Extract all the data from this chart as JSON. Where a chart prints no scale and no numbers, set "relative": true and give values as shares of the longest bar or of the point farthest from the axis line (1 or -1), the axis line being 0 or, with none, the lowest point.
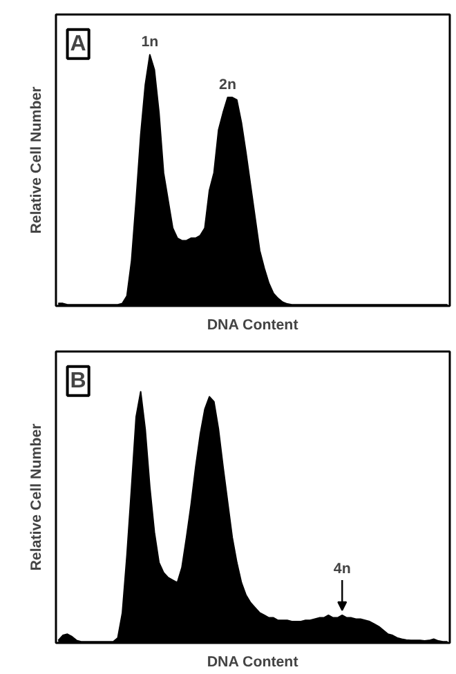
{
  "chart_data": [
    {
      "type": "area",
      "relative": true,
      "xlabel": "DNA Content",
      "ylabel": "Relative Cell Number",
      "tick_labels": false,
      "categories": [
        null,
        null,
        null,
        null,
        null,
        null,
        null,
        null,
        null,
        null,
        null,
        null,
        null,
        null,
        null,
        null,
        null,
        null,
        null,
        null,
        null,
        null,
        null,
        null,
        null,
        null,
        null,
        null,
        null,
        null,
        null,
        null,
        null,
        null,
        null,
        null,
        null,
        null,
        null,
        null,
        null,
        null,
        null,
        null,
        null,
        null,
        null,
        null,
        null,
        null,
        null,
        null,
        null,
        null,
        null,
        null,
        null,
        null,
        null,
        null,
        null,
        null,
        null,
        null,
        null,
        null,
        null,
        null,
        null,
        null,
        null,
        null,
        null,
        null,
        null,
        null,
        null,
        null,
        null,
        null,
        null,
        null,
        null,
        null,
        null,
        null
      ],
      "series": [
        {
          "color": "#000000",
          "values": [
            0.01,
            0.01,
            0.005,
            0.005,
            0.005,
            0.005,
            0.005,
            0.005,
            0.005,
            0.005,
            0.005,
            0.005,
            0.005,
            0.005,
            0.01,
            0.04,
            0.18,
            0.42,
            0.68,
            0.88,
            1.0,
            0.94,
            0.77,
            0.53,
            0.42,
            0.31,
            0.27,
            0.26,
            0.26,
            0.27,
            0.27,
            0.28,
            0.31,
            0.46,
            0.53,
            0.7,
            0.77,
            0.83,
            0.83,
            0.82,
            0.73,
            0.61,
            0.48,
            0.35,
            0.22,
            0.15,
            0.09,
            0.05,
            0.03,
            0.015,
            0.008,
            0.005,
            0.005,
            0.005,
            0.005,
            0.005,
            0.005,
            0.005,
            0.005,
            0.005,
            0.005,
            0.005,
            0.005,
            0.005,
            0.005,
            0.005,
            0.005,
            0.005,
            0.005,
            0.005,
            0.005,
            0.005,
            0.005,
            0.005,
            0.005,
            0.005,
            0.005,
            0.005,
            0.005,
            0.005,
            0.005,
            0.005,
            0.005,
            0.005,
            0.005,
            0.005
          ]
        }
      ],
      "annotations": [
        "A",
        "1n",
        "2n"
      ]
    },
    {
      "type": "area",
      "relative": true,
      "xlabel": "DNA Content",
      "ylabel": "Relative Cell Number",
      "tick_labels": false,
      "categories": [
        null,
        null,
        null,
        null,
        null,
        null,
        null,
        null,
        null,
        null,
        null,
        null,
        null,
        null,
        null,
        null,
        null,
        null,
        null,
        null,
        null,
        null,
        null,
        null,
        null,
        null,
        null,
        null,
        null,
        null,
        null,
        null,
        null,
        null,
        null,
        null,
        null,
        null,
        null,
        null,
        null,
        null,
        null,
        null,
        null,
        null,
        null,
        null,
        null,
        null,
        null,
        null,
        null,
        null,
        null,
        null,
        null,
        null,
        null,
        null,
        null,
        null,
        null,
        null,
        null,
        null,
        null,
        null,
        null,
        null,
        null,
        null,
        null,
        null,
        null,
        null,
        null,
        null,
        null,
        null,
        null,
        null,
        null,
        null,
        null,
        null
      ],
      "series": [
        {
          "color": "#000000",
          "values": [
            0.01,
            0.03,
            0.035,
            0.025,
            0.01,
            0.005,
            0.005,
            0.005,
            0.005,
            0.005,
            0.005,
            0.005,
            0.005,
            0.02,
            0.12,
            0.35,
            0.62,
            0.9,
            1.0,
            0.85,
            0.62,
            0.44,
            0.32,
            0.28,
            0.26,
            0.25,
            0.24,
            0.3,
            0.42,
            0.55,
            0.7,
            0.83,
            0.93,
            0.98,
            0.96,
            0.85,
            0.7,
            0.56,
            0.42,
            0.32,
            0.24,
            0.19,
            0.16,
            0.14,
            0.12,
            0.11,
            0.1,
            0.1,
            0.09,
            0.09,
            0.09,
            0.085,
            0.085,
            0.085,
            0.09,
            0.09,
            0.095,
            0.1,
            0.1,
            0.11,
            0.1,
            0.1,
            0.11,
            0.1,
            0.1,
            0.095,
            0.095,
            0.09,
            0.085,
            0.075,
            0.065,
            0.05,
            0.035,
            0.03,
            0.02,
            0.015,
            0.012,
            0.01,
            0.01,
            0.01,
            0.008,
            0.01,
            0.015,
            0.008,
            0.005,
            0.005
          ]
        }
      ],
      "annotations": [
        "B",
        "4n"
      ]
    }
  ]
}
